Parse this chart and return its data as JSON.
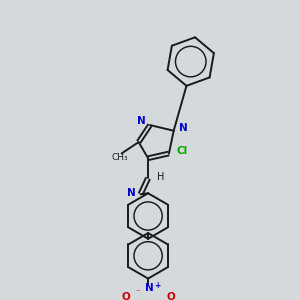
{
  "background_color": "#d4d9dc",
  "bond_color": "#1a1a1a",
  "N_color": "#0000cc",
  "Cl_color": "#00aa00",
  "O_color": "#cc0000",
  "fig_w": 3.0,
  "fig_h": 3.0,
  "dpi": 100,
  "xlim": [
    0,
    300
  ],
  "ylim": [
    0,
    300
  ]
}
